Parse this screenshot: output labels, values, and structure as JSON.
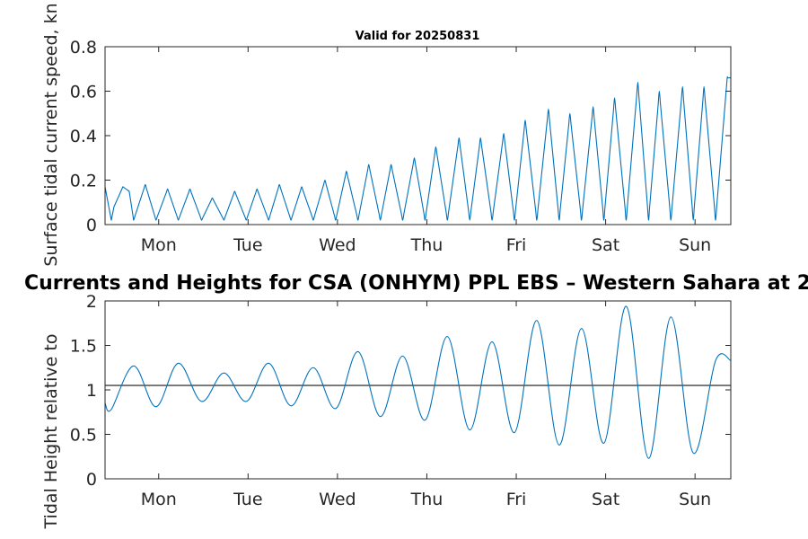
{
  "figure": {
    "main_title": "Currents and Heights for CSA (ONHYM) PPL EBS  – Western Sahara at 2",
    "subtitle": "Valid for 20250831"
  },
  "colors": {
    "series": "#0072BD",
    "reference_line": "#404040",
    "axes": "#262626"
  },
  "chart_data": [
    {
      "type": "line",
      "subtitle": "Valid for 20250831",
      "ylabel": "Surface tidal current speed, kn",
      "xlabel": "",
      "xlim": [
        0.4,
        7.4
      ],
      "ylim": [
        0,
        0.8
      ],
      "grid": false,
      "x_ticks": [
        1,
        2,
        3,
        4,
        5,
        6,
        7
      ],
      "x_tick_labels": [
        "Mon",
        "Tue",
        "Wed",
        "Thu",
        "Fri",
        "Sat",
        "Sun"
      ],
      "y_ticks": [
        0,
        0.2,
        0.4,
        0.6,
        0.8
      ],
      "y_tick_labels": [
        "0",
        "0.2",
        "0.4",
        "0.6",
        "0.8"
      ],
      "series": [
        {
          "x": [
            0.4,
            0.47,
            0.5,
            0.6,
            0.67,
            0.72,
            0.85,
            0.97,
            1.1,
            1.22,
            1.35,
            1.48,
            1.6,
            1.73,
            1.85,
            1.98,
            2.1,
            2.23,
            2.35,
            2.48,
            2.6,
            2.73,
            2.86,
            2.98,
            3.1,
            3.23,
            3.35,
            3.48,
            3.6,
            3.73,
            3.86,
            3.98,
            4.1,
            4.23,
            4.36,
            4.48,
            4.6,
            4.73,
            4.86,
            4.98,
            5.1,
            5.23,
            5.36,
            5.48,
            5.6,
            5.73,
            5.86,
            5.98,
            6.1,
            6.23,
            6.36,
            6.48,
            6.6,
            6.73,
            6.86,
            6.98,
            7.1,
            7.23,
            7.36,
            7.4
          ],
          "y": [
            0.17,
            0.02,
            0.08,
            0.17,
            0.15,
            0.02,
            0.18,
            0.02,
            0.16,
            0.02,
            0.16,
            0.02,
            0.12,
            0.02,
            0.15,
            0.02,
            0.16,
            0.02,
            0.18,
            0.02,
            0.17,
            0.02,
            0.2,
            0.02,
            0.24,
            0.02,
            0.27,
            0.02,
            0.27,
            0.02,
            0.3,
            0.02,
            0.35,
            0.02,
            0.39,
            0.02,
            0.39,
            0.02,
            0.41,
            0.02,
            0.47,
            0.02,
            0.52,
            0.02,
            0.5,
            0.02,
            0.53,
            0.02,
            0.57,
            0.02,
            0.64,
            0.02,
            0.6,
            0.02,
            0.62,
            0.02,
            0.62,
            0.02,
            0.66,
            0.66
          ]
        }
      ]
    },
    {
      "type": "line",
      "title": "Currents and Heights for CSA (ONHYM) PPL EBS  – Western Sahara at 2",
      "ylabel": "Tidal Height relative to",
      "xlabel": "",
      "xlim": [
        0.4,
        7.4
      ],
      "ylim": [
        0,
        2
      ],
      "grid": false,
      "x_ticks": [
        1,
        2,
        3,
        4,
        5,
        6,
        7
      ],
      "x_tick_labels": [
        "Mon",
        "Tue",
        "Wed",
        "Thu",
        "Fri",
        "Sat",
        "Sun"
      ],
      "y_ticks": [
        0,
        0.5,
        1,
        1.5,
        2
      ],
      "y_tick_labels": [
        "0",
        "0.5",
        "1",
        "1.5",
        "2"
      ],
      "reference_line": 1.05,
      "series": [
        {
          "x": [
            0.4,
            0.47,
            0.72,
            0.97,
            1.22,
            1.48,
            1.73,
            1.98,
            2.23,
            2.48,
            2.73,
            2.98,
            3.23,
            3.48,
            3.73,
            3.98,
            4.23,
            4.48,
            4.73,
            4.98,
            5.23,
            5.48,
            5.73,
            5.98,
            6.23,
            6.48,
            6.73,
            6.98,
            7.23,
            7.4
          ],
          "y": [
            0.85,
            0.78,
            1.27,
            0.81,
            1.3,
            0.87,
            1.19,
            0.87,
            1.3,
            0.82,
            1.25,
            0.79,
            1.43,
            0.7,
            1.38,
            0.66,
            1.6,
            0.55,
            1.54,
            0.52,
            1.78,
            0.38,
            1.69,
            0.4,
            1.94,
            0.23,
            1.82,
            0.29,
            1.33,
            1.33
          ]
        }
      ]
    }
  ]
}
